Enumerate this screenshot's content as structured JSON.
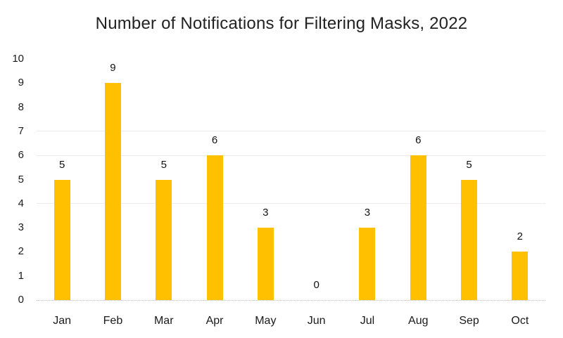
{
  "chart_data": {
    "type": "bar",
    "title": "Number of Notifications for Filtering Masks, 2022",
    "categories": [
      "Jan",
      "Feb",
      "Mar",
      "Apr",
      "May",
      "Jun",
      "Jul",
      "Aug",
      "Sep",
      "Oct"
    ],
    "values": [
      5,
      9,
      5,
      6,
      3,
      0,
      3,
      6,
      5,
      2
    ],
    "data_labels": [
      5,
      9,
      5,
      6,
      3,
      0,
      3,
      6,
      5,
      2
    ],
    "xlabel": "",
    "ylabel": "",
    "ylim": [
      0,
      10
    ],
    "yticks": [
      0,
      1,
      2,
      3,
      4,
      5,
      6,
      7,
      8,
      9,
      10
    ],
    "visible_gridlines": [
      4,
      6,
      7
    ],
    "legend": "none",
    "bar_color": "#FFC000",
    "gridline_color": "#ececec",
    "axis_line_color": "#b9b9b9",
    "text_color": "#1a1a1a",
    "background_color": "#ffffff"
  }
}
